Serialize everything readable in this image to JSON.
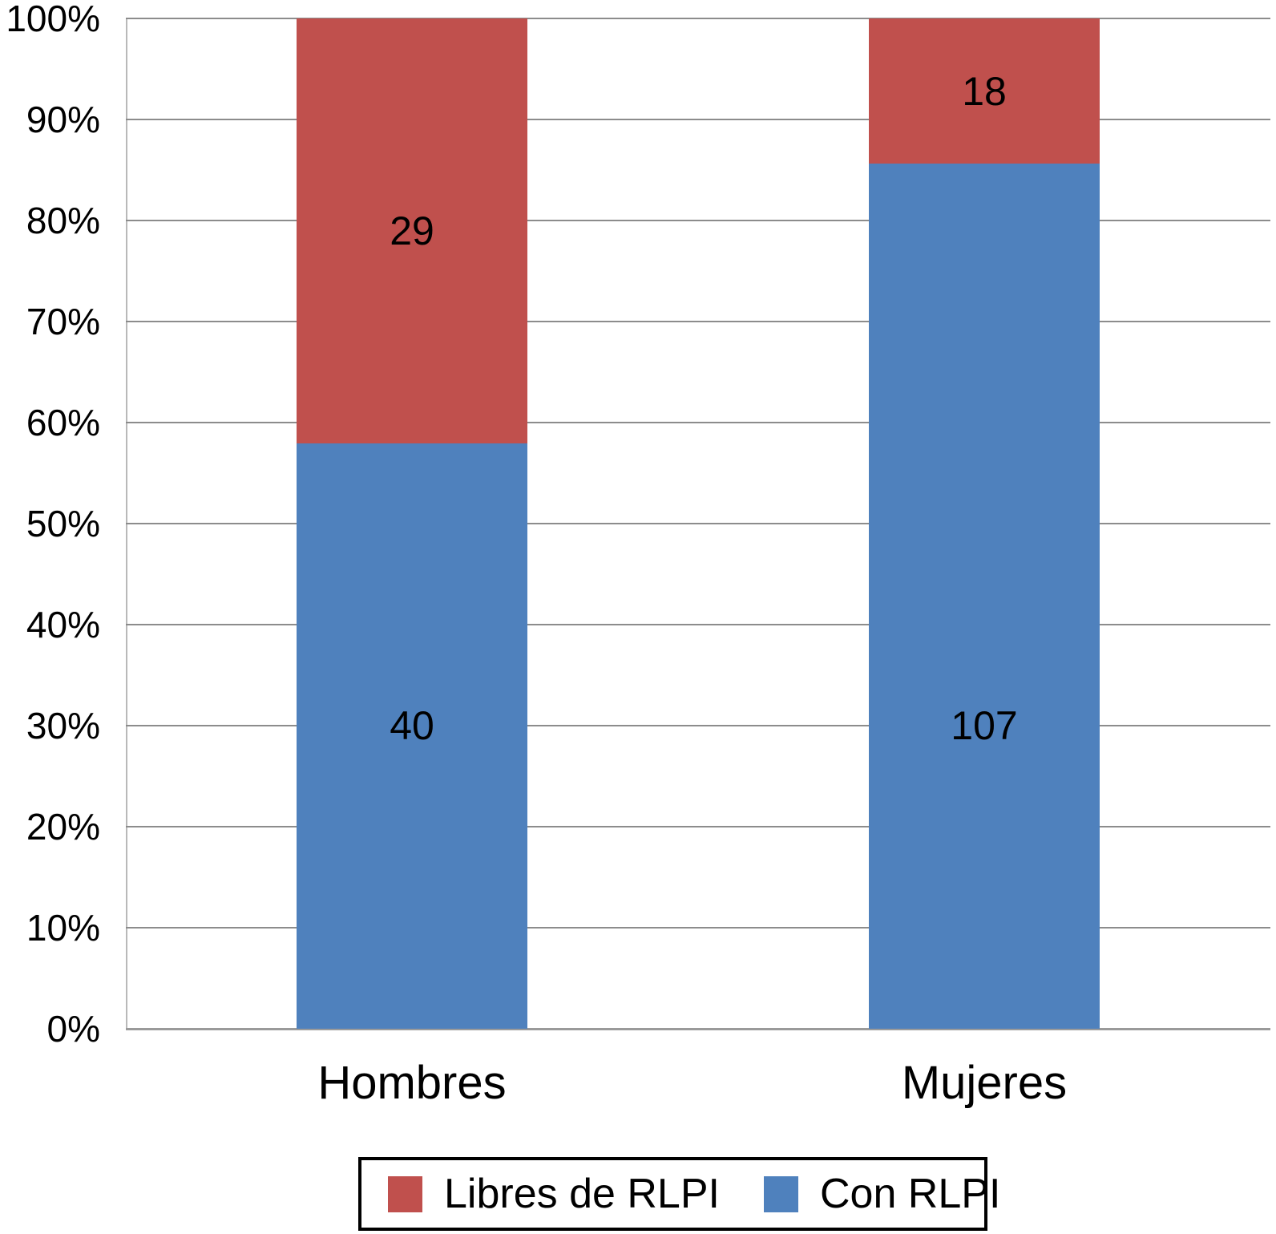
{
  "chart_data": {
    "type": "bar",
    "subtype": "percent-stacked-column",
    "categories": [
      "Hombres",
      "Mujeres"
    ],
    "series": [
      {
        "name": "Libres de RLPI",
        "color": "#C0504D",
        "values": [
          29,
          18
        ]
      },
      {
        "name": "Con RLPI",
        "color": "#4F81BD",
        "values": [
          40,
          107
        ]
      }
    ],
    "yticks": [
      "0%",
      "10%",
      "20%",
      "30%",
      "40%",
      "50%",
      "60%",
      "70%",
      "80%",
      "90%",
      "100%"
    ],
    "ylim": [
      0,
      100
    ],
    "grid": true,
    "legend_position": "bottom",
    "colors": {
      "gridline": "#8c8c8c",
      "axis": "#9a9a9a",
      "text": "#000000"
    }
  }
}
